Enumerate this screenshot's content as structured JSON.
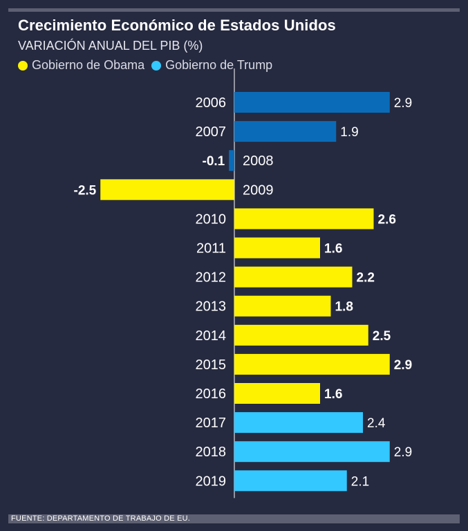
{
  "header": {
    "title": "Crecimiento Económico de Estados Unidos",
    "subtitle": "VARIACIÓN ANUAL DEL PIB (%)"
  },
  "legend": [
    {
      "label": "Gobierno de Obama",
      "color": "#fff200"
    },
    {
      "label": "Gobierno de Trump",
      "color": "#33c8ff"
    }
  ],
  "colors": {
    "bush": "#0a6cb8",
    "obama": "#fff200",
    "trump": "#33c8ff",
    "background": "#262a40"
  },
  "footer": {
    "source": "FUENTE: DEPARTAMENTO DE TRABAJO DE EU."
  },
  "chart_data": {
    "type": "bar",
    "orientation": "horizontal",
    "title": "Crecimiento Económico de Estados Unidos",
    "ylabel": "VARIACIÓN ANUAL DEL PIB (%)",
    "categories": [
      "2006",
      "2007",
      "2008",
      "2009",
      "2010",
      "2011",
      "2012",
      "2013",
      "2014",
      "2015",
      "2016",
      "2017",
      "2018",
      "2019"
    ],
    "values": [
      2.9,
      1.9,
      -0.1,
      -2.5,
      2.6,
      1.6,
      2.2,
      1.8,
      2.5,
      2.9,
      1.6,
      2.4,
      2.9,
      2.1
    ],
    "labels": [
      "2.9",
      "1.9",
      "-0.1",
      "-2.5",
      "2.6",
      "1.6",
      "2.2",
      "1.8",
      "2.5",
      "2.9",
      "1.6",
      "2.4",
      "2.9",
      "2.1"
    ],
    "groups": [
      "bush",
      "bush",
      "bush",
      "obama",
      "obama",
      "obama",
      "obama",
      "obama",
      "obama",
      "obama",
      "obama",
      "trump",
      "trump",
      "trump"
    ],
    "xlim": [
      -2.5,
      2.9
    ]
  }
}
